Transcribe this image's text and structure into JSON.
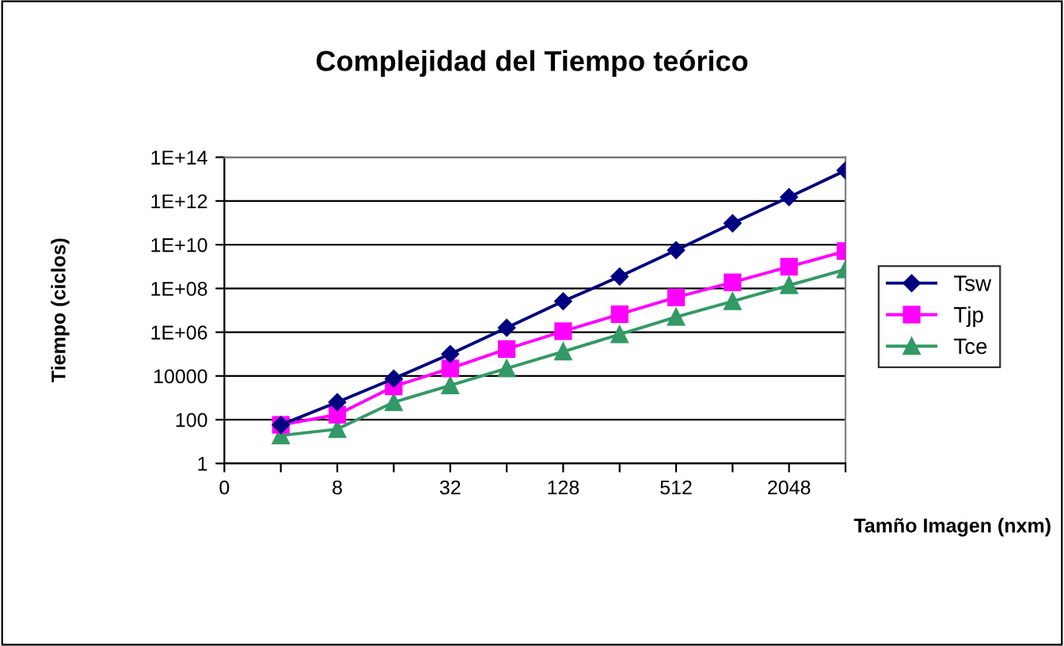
{
  "chart_data": {
    "type": "line",
    "title": "Complejidad del Tiempo teórico",
    "xlabel": "Tamño Imagen (nxm)",
    "ylabel": "Tiempo (ciclos)",
    "categories": [
      "0",
      null,
      "8",
      null,
      "32",
      null,
      "128",
      null,
      "512",
      null,
      "2048",
      null
    ],
    "series": [
      {
        "name": "Tsw",
        "color": "#000080",
        "marker": "diamond",
        "values": [
          null,
          58,
          630,
          7600,
          100000,
          1600000,
          26000000,
          350000000,
          5600000000,
          95000000000,
          1500000000000,
          25000000000000
        ]
      },
      {
        "name": "Tjp",
        "color": "#ff00ff",
        "marker": "square",
        "values": [
          null,
          58,
          170,
          3300,
          22000,
          170000,
          1100000,
          6600000,
          39000000,
          190000000,
          980000000,
          5100000000
        ]
      },
      {
        "name": "Tce",
        "color": "#339966",
        "marker": "triangle",
        "values": [
          null,
          19,
          37,
          630,
          3700,
          22000,
          130000,
          790000,
          5000000,
          26000000,
          140000000,
          740000000
        ]
      }
    ],
    "log": "y",
    "ylim": [
      1,
      100000000000000
    ],
    "yticks": [
      1,
      100,
      10000,
      {
        "value": 1000000,
        "label": "1E+06"
      },
      {
        "value": 100000000,
        "label": "1E+08"
      },
      {
        "value": 10000000000,
        "label": "1E+10"
      },
      {
        "value": 1000000000000,
        "label": "1E+12"
      },
      {
        "value": 100000000000000,
        "label": "1E+14"
      }
    ],
    "grid": "y",
    "legend": "right",
    "line_style": "solid"
  }
}
